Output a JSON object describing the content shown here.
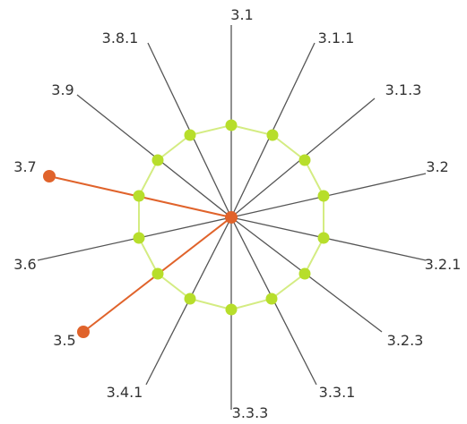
{
  "diagram": {
    "colors": {
      "spoke": "#555555",
      "highlight": "#e0632b",
      "ring": "#d4ec82",
      "ring_node": "#b7de2b",
      "center": "#e0632b",
      "text": "#333333"
    },
    "spokes": [
      {
        "label": "3.1",
        "highlighted": false
      },
      {
        "label": "3.1.1",
        "highlighted": false
      },
      {
        "label": "3.1.3",
        "highlighted": false
      },
      {
        "label": "3.2",
        "highlighted": false
      },
      {
        "label": "3.2.1",
        "highlighted": false
      },
      {
        "label": "3.2.3",
        "highlighted": false
      },
      {
        "label": "3.3.1",
        "highlighted": false
      },
      {
        "label": "3.3.3",
        "highlighted": false
      },
      {
        "label": "3.4.1",
        "highlighted": false
      },
      {
        "label": "3.5",
        "highlighted": true
      },
      {
        "label": "3.6",
        "highlighted": false
      },
      {
        "label": "3.7",
        "highlighted": true
      },
      {
        "label": "3.9",
        "highlighted": false
      },
      {
        "label": "3.8.1",
        "highlighted": false
      }
    ]
  }
}
